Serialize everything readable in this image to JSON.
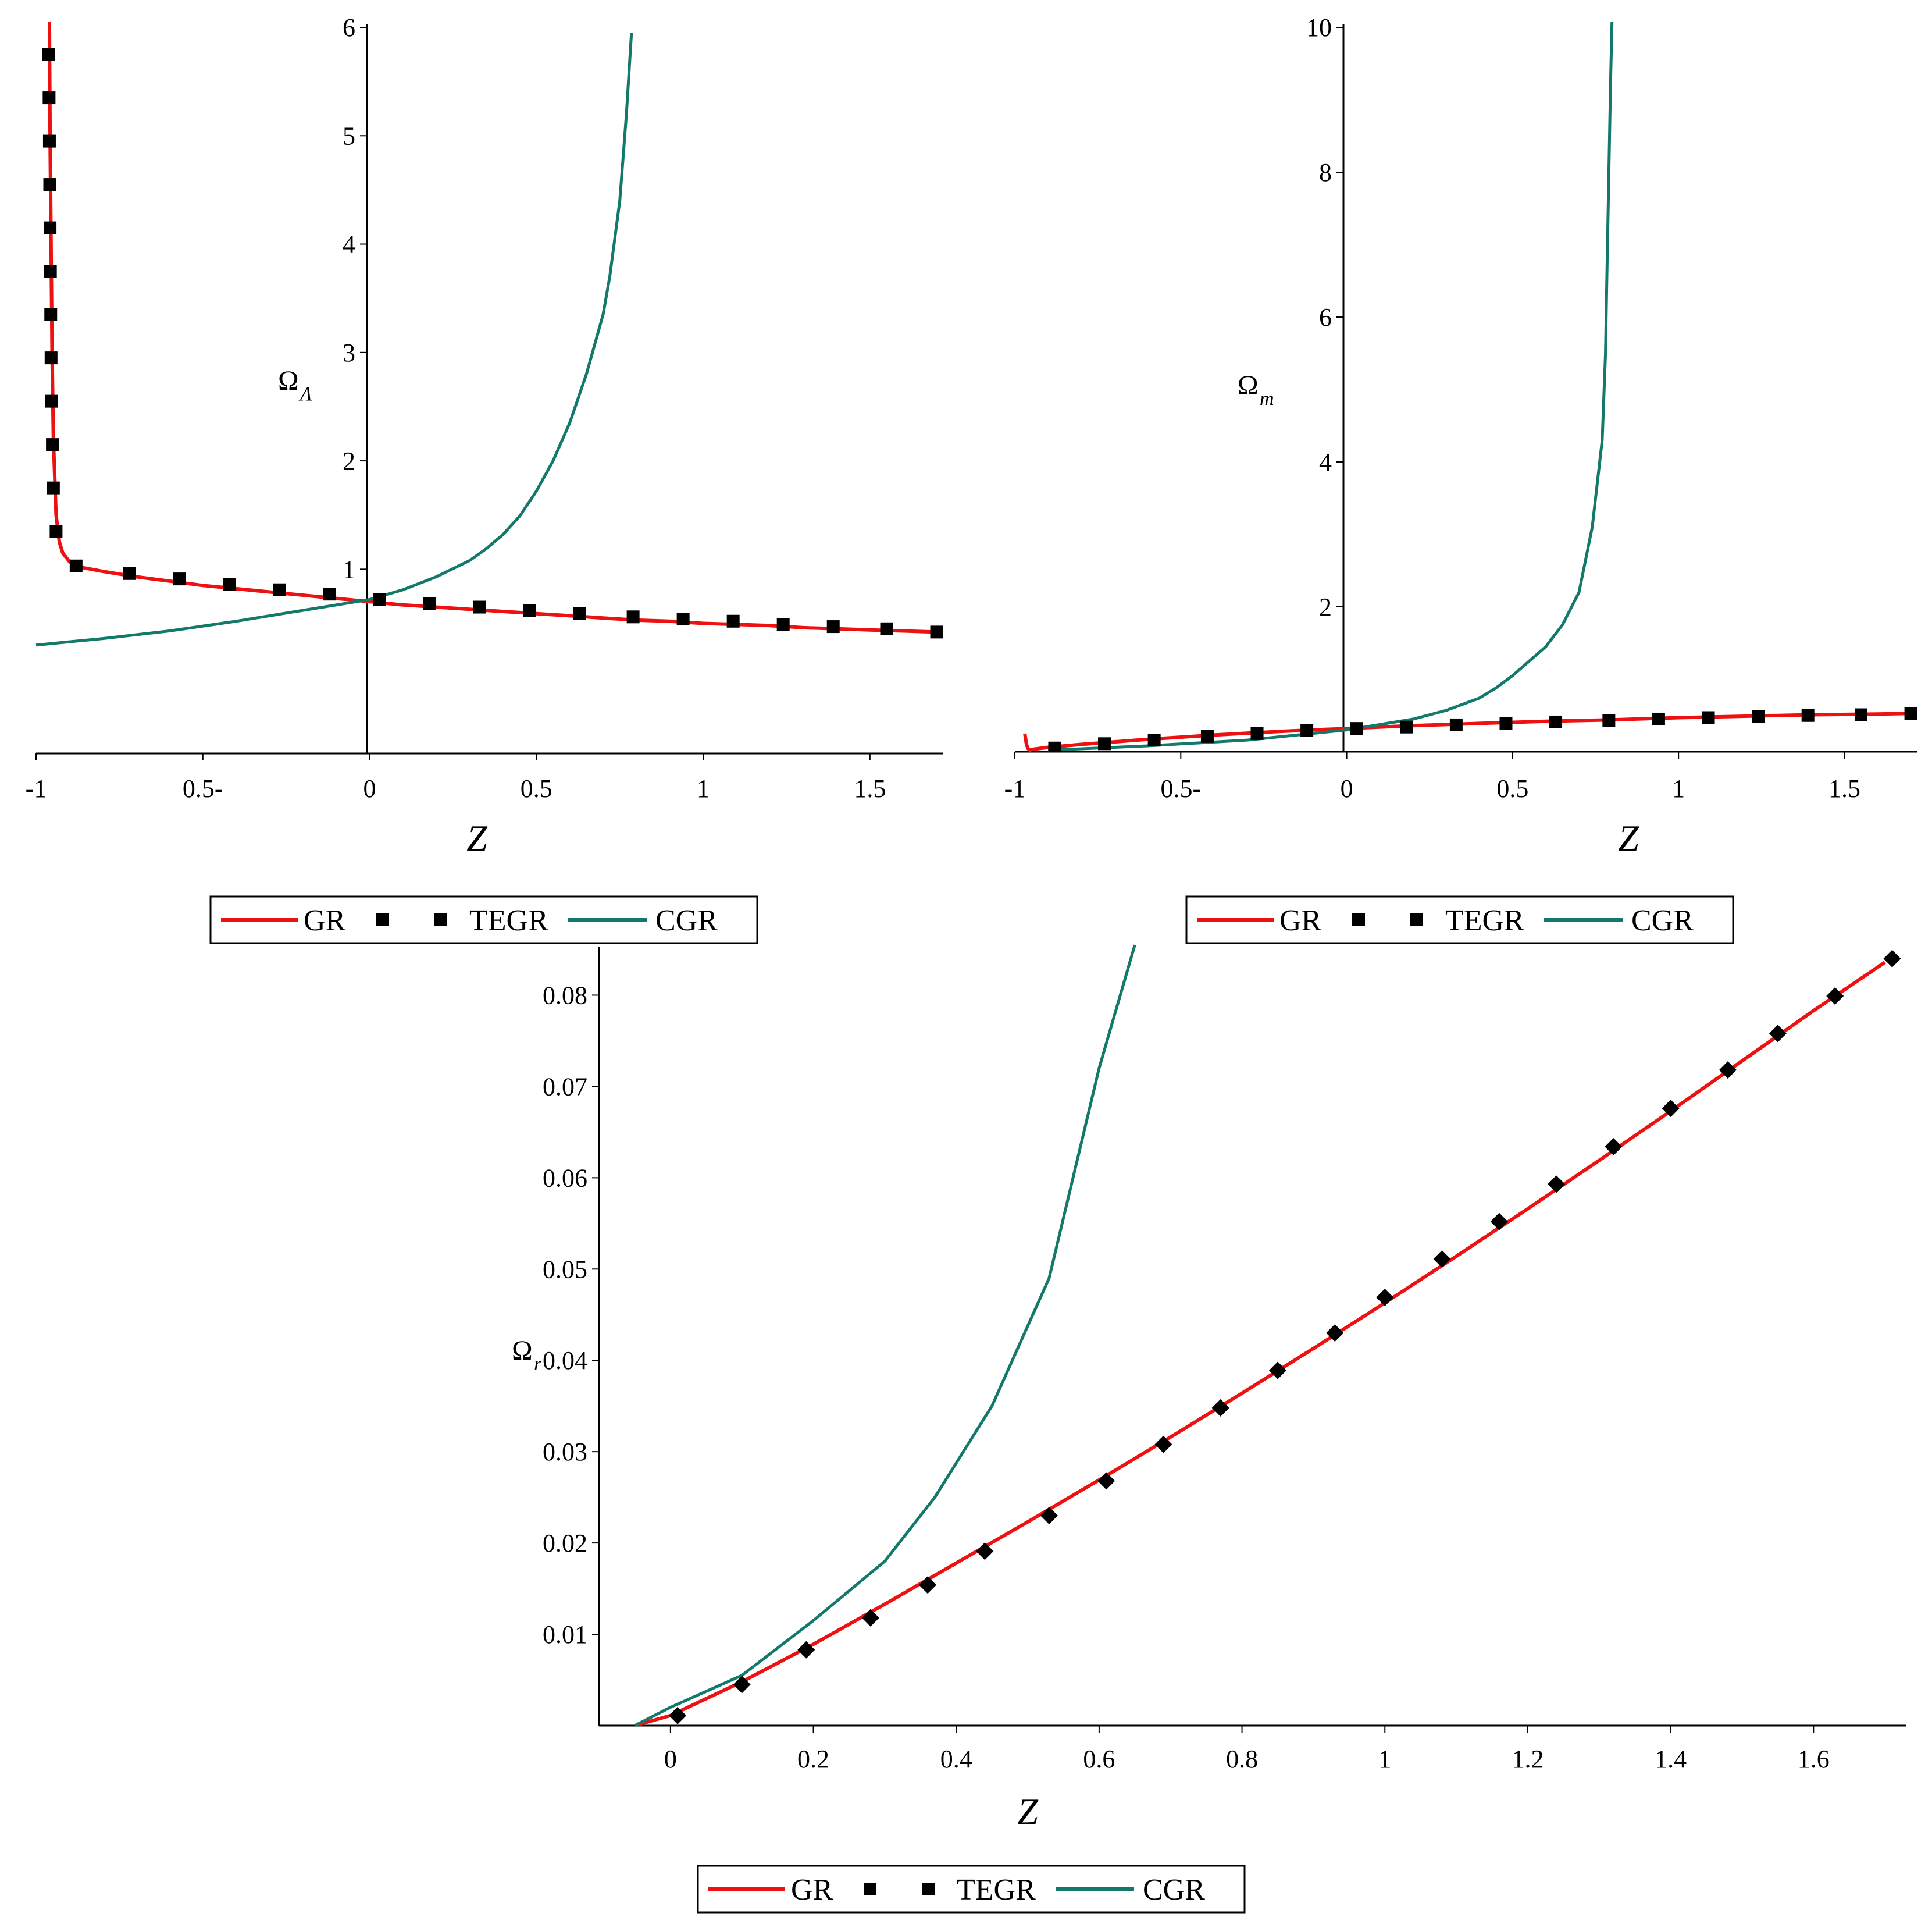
{
  "colors": {
    "GR": "#ee1111",
    "TEGR": "#000000",
    "CGR": "#137a6b"
  },
  "legend": {
    "items": [
      "GR",
      "TEGR",
      "CGR"
    ]
  },
  "chart_data": [
    {
      "type": "line",
      "xlabel": "Z",
      "ylabel_main": "Ω",
      "ylabel_sub": "Λ",
      "xlim": [
        -1,
        1.72
      ],
      "ylim": [
        -0.7,
        6
      ],
      "xticks": [
        -1,
        -0.5,
        0,
        0.5,
        1,
        1.5
      ],
      "xtick_labels": [
        "-1",
        "0.5-",
        "0",
        "0.5",
        "1",
        "1.5"
      ],
      "yticks": [
        1,
        2,
        3,
        4,
        5,
        6
      ],
      "ytick_labels": [
        "1",
        "2",
        "3",
        "4",
        "5",
        "6"
      ],
      "series": [
        {
          "name": "GR",
          "style": "line",
          "color_key": "GR",
          "x": [
            -0.96,
            -0.958,
            -0.955,
            -0.952,
            -0.948,
            -0.94,
            -0.93,
            -0.92,
            -0.9,
            -0.87,
            -0.8,
            -0.7,
            -0.6,
            -0.5,
            -0.4,
            -0.3,
            -0.2,
            -0.1,
            0,
            0.1,
            0.2,
            0.3,
            0.4,
            0.5,
            0.6,
            0.7,
            0.8,
            0.9,
            1.0,
            1.1,
            1.2,
            1.3,
            1.4,
            1.5,
            1.6,
            1.7
          ],
          "y": [
            6.1,
            5.0,
            4.0,
            3.0,
            2.2,
            1.5,
            1.25,
            1.15,
            1.07,
            1.02,
            0.98,
            0.93,
            0.89,
            0.85,
            0.82,
            0.79,
            0.76,
            0.73,
            0.7,
            0.67,
            0.65,
            0.63,
            0.61,
            0.59,
            0.57,
            0.55,
            0.53,
            0.52,
            0.5,
            0.49,
            0.48,
            0.46,
            0.45,
            0.44,
            0.43,
            0.42
          ]
        },
        {
          "name": "TEGR",
          "style": "markers",
          "color_key": "TEGR",
          "x": [
            -0.962,
            -0.961,
            -0.96,
            -0.959,
            -0.958,
            -0.957,
            -0.956,
            -0.955,
            -0.953,
            -0.951,
            -0.948,
            -0.94,
            -0.88,
            -0.72,
            -0.57,
            -0.42,
            -0.27,
            -0.12,
            0.03,
            0.18,
            0.33,
            0.48,
            0.63,
            0.79,
            0.94,
            1.09,
            1.24,
            1.39,
            1.55,
            1.7
          ],
          "y": [
            5.75,
            5.35,
            4.95,
            4.55,
            4.15,
            3.75,
            3.35,
            2.95,
            2.55,
            2.15,
            1.75,
            1.35,
            1.03,
            0.96,
            0.91,
            0.86,
            0.81,
            0.77,
            0.72,
            0.68,
            0.65,
            0.62,
            0.59,
            0.56,
            0.54,
            0.52,
            0.49,
            0.47,
            0.45,
            0.42
          ]
        },
        {
          "name": "CGR",
          "style": "line",
          "color_key": "CGR",
          "x": [
            -1.0,
            -0.8,
            -0.6,
            -0.4,
            -0.2,
            -0.1,
            0,
            0.1,
            0.2,
            0.3,
            0.35,
            0.4,
            0.45,
            0.5,
            0.55,
            0.6,
            0.65,
            0.7,
            0.72,
            0.75,
            0.77,
            0.785
          ],
          "y": [
            0.3,
            0.36,
            0.43,
            0.52,
            0.62,
            0.67,
            0.72,
            0.81,
            0.93,
            1.08,
            1.19,
            1.32,
            1.49,
            1.72,
            2.0,
            2.35,
            2.8,
            3.35,
            3.7,
            4.4,
            5.2,
            5.95
          ]
        }
      ]
    },
    {
      "type": "line",
      "xlabel": "Z",
      "ylabel_main": "Ω",
      "ylabel_sub": "m",
      "xlim": [
        -1,
        1.72
      ],
      "ylim": [
        0,
        10
      ],
      "xticks": [
        -1,
        -0.5,
        0,
        0.5,
        1,
        1.5
      ],
      "xtick_labels": [
        "-1",
        "0.5-",
        "0",
        "0.5",
        "1",
        "1.5"
      ],
      "yticks": [
        2,
        4,
        6,
        8,
        10
      ],
      "ytick_labels": [
        "2",
        "4",
        "6",
        "8",
        "10"
      ],
      "series": [
        {
          "name": "GR",
          "style": "line",
          "color_key": "GR",
          "x": [
            -0.97,
            -0.965,
            -0.96,
            -0.955,
            -0.95,
            -0.9,
            -0.8,
            -0.6,
            -0.4,
            -0.2,
            0,
            0.2,
            0.4,
            0.6,
            0.8,
            1.0,
            1.2,
            1.4,
            1.6,
            1.72
          ],
          "y": [
            0.25,
            0.1,
            0.04,
            0.02,
            0.03,
            0.06,
            0.1,
            0.17,
            0.23,
            0.28,
            0.32,
            0.36,
            0.39,
            0.42,
            0.44,
            0.47,
            0.49,
            0.51,
            0.52,
            0.53
          ]
        },
        {
          "name": "TEGR",
          "style": "markers",
          "color_key": "TEGR",
          "x": [
            -0.88,
            -0.73,
            -0.58,
            -0.42,
            -0.27,
            -0.12,
            0.03,
            0.18,
            0.33,
            0.48,
            0.63,
            0.79,
            0.94,
            1.09,
            1.24,
            1.39,
            1.55,
            1.7
          ],
          "y": [
            0.05,
            0.11,
            0.16,
            0.21,
            0.25,
            0.29,
            0.32,
            0.34,
            0.37,
            0.39,
            0.41,
            0.43,
            0.45,
            0.47,
            0.49,
            0.5,
            0.51,
            0.53
          ]
        },
        {
          "name": "CGR",
          "style": "line",
          "color_key": "CGR",
          "x": [
            -0.9,
            -0.6,
            -0.3,
            0,
            0.2,
            0.3,
            0.4,
            0.45,
            0.5,
            0.55,
            0.6,
            0.65,
            0.7,
            0.74,
            0.77,
            0.78,
            0.785,
            0.79,
            0.795,
            0.8
          ],
          "y": [
            0.02,
            0.08,
            0.16,
            0.3,
            0.45,
            0.57,
            0.74,
            0.88,
            1.05,
            1.25,
            1.45,
            1.75,
            2.2,
            3.1,
            4.3,
            5.5,
            6.8,
            8.0,
            9.2,
            10.2
          ]
        }
      ]
    },
    {
      "type": "line",
      "xlabel": "Z",
      "ylabel_main": "Ω",
      "ylabel_sub": "r",
      "xlim": [
        -0.1,
        1.73
      ],
      "ylim": [
        0,
        0.085
      ],
      "xticks": [
        0,
        0.2,
        0.4,
        0.6,
        0.8,
        1,
        1.2,
        1.4,
        1.6
      ],
      "xtick_labels": [
        "0",
        "0.2",
        "0.4",
        "0.6",
        "0.8",
        "1",
        "1.2",
        "1.4",
        "1.6"
      ],
      "yticks": [
        0.01,
        0.02,
        0.03,
        0.04,
        0.05,
        0.06,
        0.07,
        0.08
      ],
      "ytick_labels": [
        "0.01",
        "0.02",
        "0.03",
        "0.04",
        "0.05",
        "0.06",
        "0.07",
        "0.08"
      ],
      "series": [
        {
          "name": "GR",
          "style": "line",
          "color_key": "GR",
          "x": [
            -0.05,
            0,
            0.1,
            0.2,
            0.3,
            0.4,
            0.5,
            0.6,
            0.7,
            0.8,
            0.9,
            1.0,
            1.1,
            1.2,
            1.3,
            1.4,
            1.5,
            1.6,
            1.7
          ],
          "y": [
            0,
            0.0011,
            0.0048,
            0.0089,
            0.0133,
            0.0178,
            0.0223,
            0.0269,
            0.0316,
            0.0364,
            0.0413,
            0.0463,
            0.0514,
            0.0566,
            0.0619,
            0.0673,
            0.0728,
            0.0783,
            0.0836
          ]
        },
        {
          "name": "TEGR",
          "style": "diamonds",
          "color_key": "TEGR",
          "x": [
            0.01,
            0.1,
            0.19,
            0.28,
            0.36,
            0.44,
            0.53,
            0.61,
            0.69,
            0.77,
            0.85,
            0.93,
            1.0,
            1.08,
            1.16,
            1.24,
            1.32,
            1.4,
            1.48,
            1.55,
            1.63,
            1.71
          ],
          "y": [
            0.0011,
            0.0045,
            0.0083,
            0.0118,
            0.0154,
            0.0191,
            0.023,
            0.0268,
            0.0308,
            0.0348,
            0.0389,
            0.043,
            0.0469,
            0.0511,
            0.0552,
            0.0593,
            0.0634,
            0.0676,
            0.0718,
            0.0758,
            0.0799,
            0.084
          ]
        },
        {
          "name": "CGR",
          "style": "line",
          "color_key": "CGR",
          "x": [
            -0.05,
            0,
            0.1,
            0.2,
            0.3,
            0.37,
            0.45,
            0.53,
            0.6,
            0.65
          ],
          "y": [
            0,
            0.002,
            0.0055,
            0.0115,
            0.018,
            0.025,
            0.035,
            0.049,
            0.072,
            0.0855
          ]
        }
      ]
    }
  ]
}
